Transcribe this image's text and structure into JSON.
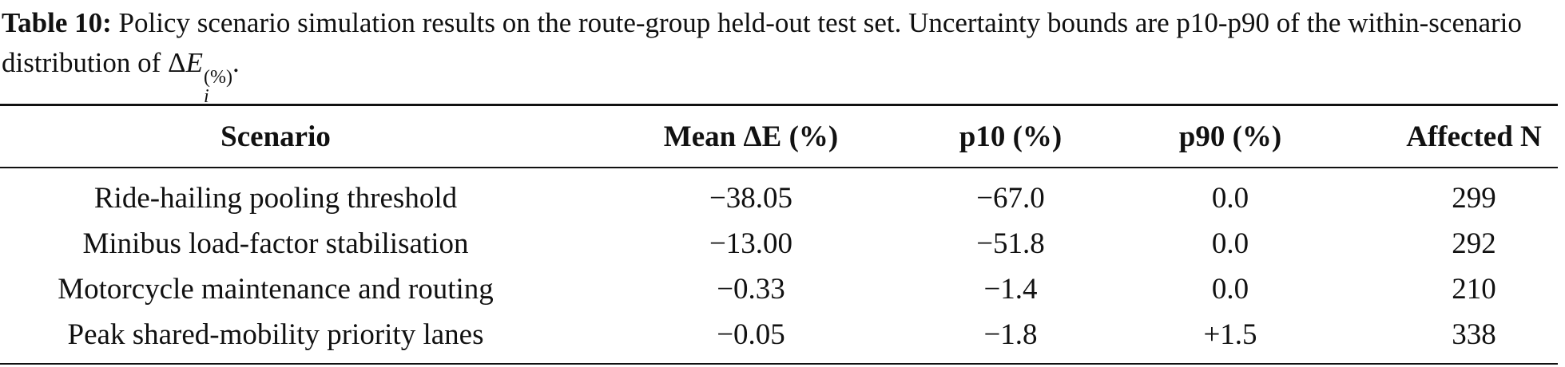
{
  "caption": {
    "label": "Table 10:",
    "text": "Policy scenario simulation results on the route-group held-out test set. Uncertainty bounds are p10-p90 of the within-scenario distribution of",
    "math": {
      "base_symbol": "Δ",
      "base_var": "E",
      "subscript": "i",
      "superscript": "(%)"
    },
    "end": "."
  },
  "table": {
    "header": [
      "Scenario",
      "Mean ΔE (%)",
      "p10 (%)",
      "p90 (%)",
      "Affected N"
    ],
    "rows": [
      [
        "Ride-hailing pooling threshold",
        "−38.05",
        "−67.0",
        "0.0",
        "299"
      ],
      [
        "Minibus load-factor stabilisation",
        "−13.00",
        "−51.8",
        "0.0",
        "292"
      ],
      [
        "Motorcycle maintenance and routing",
        "−0.33",
        "−1.4",
        "0.0",
        "210"
      ],
      [
        "Peak shared-mobility priority lanes",
        "−0.05",
        "−1.8",
        "+1.5",
        "338"
      ]
    ]
  }
}
